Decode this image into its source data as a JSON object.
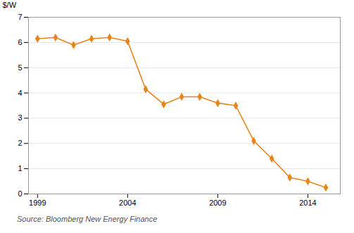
{
  "chart_data": {
    "type": "line",
    "x": [
      1999,
      2000,
      2001,
      2002,
      2003,
      2004,
      2005,
      2006,
      2007,
      2008,
      2009,
      2010,
      2011,
      2012,
      2013,
      2014,
      2015
    ],
    "values": [
      6.15,
      6.2,
      5.9,
      6.15,
      6.2,
      6.05,
      4.15,
      3.55,
      3.85,
      3.85,
      3.6,
      3.5,
      2.1,
      1.4,
      0.65,
      0.5,
      0.25
    ],
    "color": "#E8851A",
    "marker": "diamond",
    "ylabel": "$/W",
    "xlim": [
      1998.5,
      2015.8
    ],
    "ylim": [
      0,
      7
    ],
    "xticks": [
      1999,
      2004,
      2009,
      2014
    ],
    "yticks": [
      0,
      1,
      2,
      3,
      4,
      5,
      6,
      7
    ],
    "grid": true,
    "annotations": [
      "Source: Bloomberg New Energy Finance"
    ]
  }
}
